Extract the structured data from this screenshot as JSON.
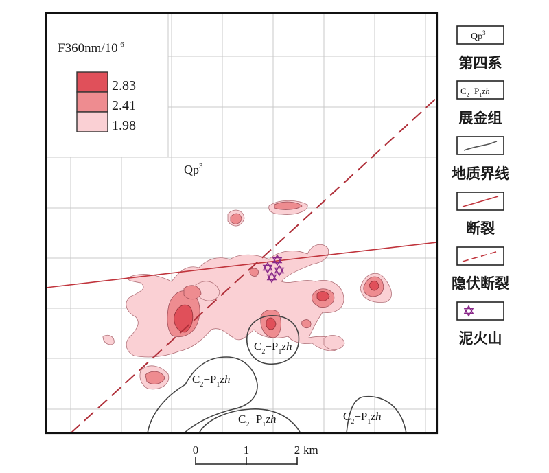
{
  "legend_anomaly": {
    "title_main": "F360nm/10",
    "title_exp": "-6",
    "levels": [
      {
        "value": "2.83",
        "color": "#e0505a"
      },
      {
        "value": "2.41",
        "color": "#ee8c90"
      },
      {
        "value": "1.98",
        "color": "#fad0d4"
      }
    ]
  },
  "labels": {
    "qp": {
      "base": "Qp",
      "sup": "3"
    },
    "formation": {
      "c": "C",
      "c_sub": "2",
      "dash": "−P",
      "p_sub": "1",
      "italic": "zh"
    }
  },
  "side_legend": {
    "items": [
      {
        "type": "qp-box",
        "box_base": "Qp",
        "box_sup": "3",
        "label": "第四系"
      },
      {
        "type": "formation-box",
        "box_c": "C",
        "box_c_sub": "2",
        "box_dash": "−P",
        "box_p_sub": "1",
        "box_italic": "zh",
        "label": "展金组"
      },
      {
        "type": "boundary-line",
        "label": "地质界线"
      },
      {
        "type": "fault-line",
        "label": "断裂"
      },
      {
        "type": "hidden-fault-line",
        "label": "隐伏断裂"
      },
      {
        "type": "mud-volcano-symbol",
        "label": "泥火山"
      }
    ]
  },
  "scale_bar": {
    "ticks": [
      "0",
      "1",
      "2"
    ],
    "unit": "km"
  },
  "colors": {
    "fault": "#c0343c",
    "boundary": "#444444",
    "grid": "#c8c8c8",
    "volcano": "#8a2a8a"
  },
  "icons": [
    "star-of-david-mud-volcano-icon"
  ]
}
